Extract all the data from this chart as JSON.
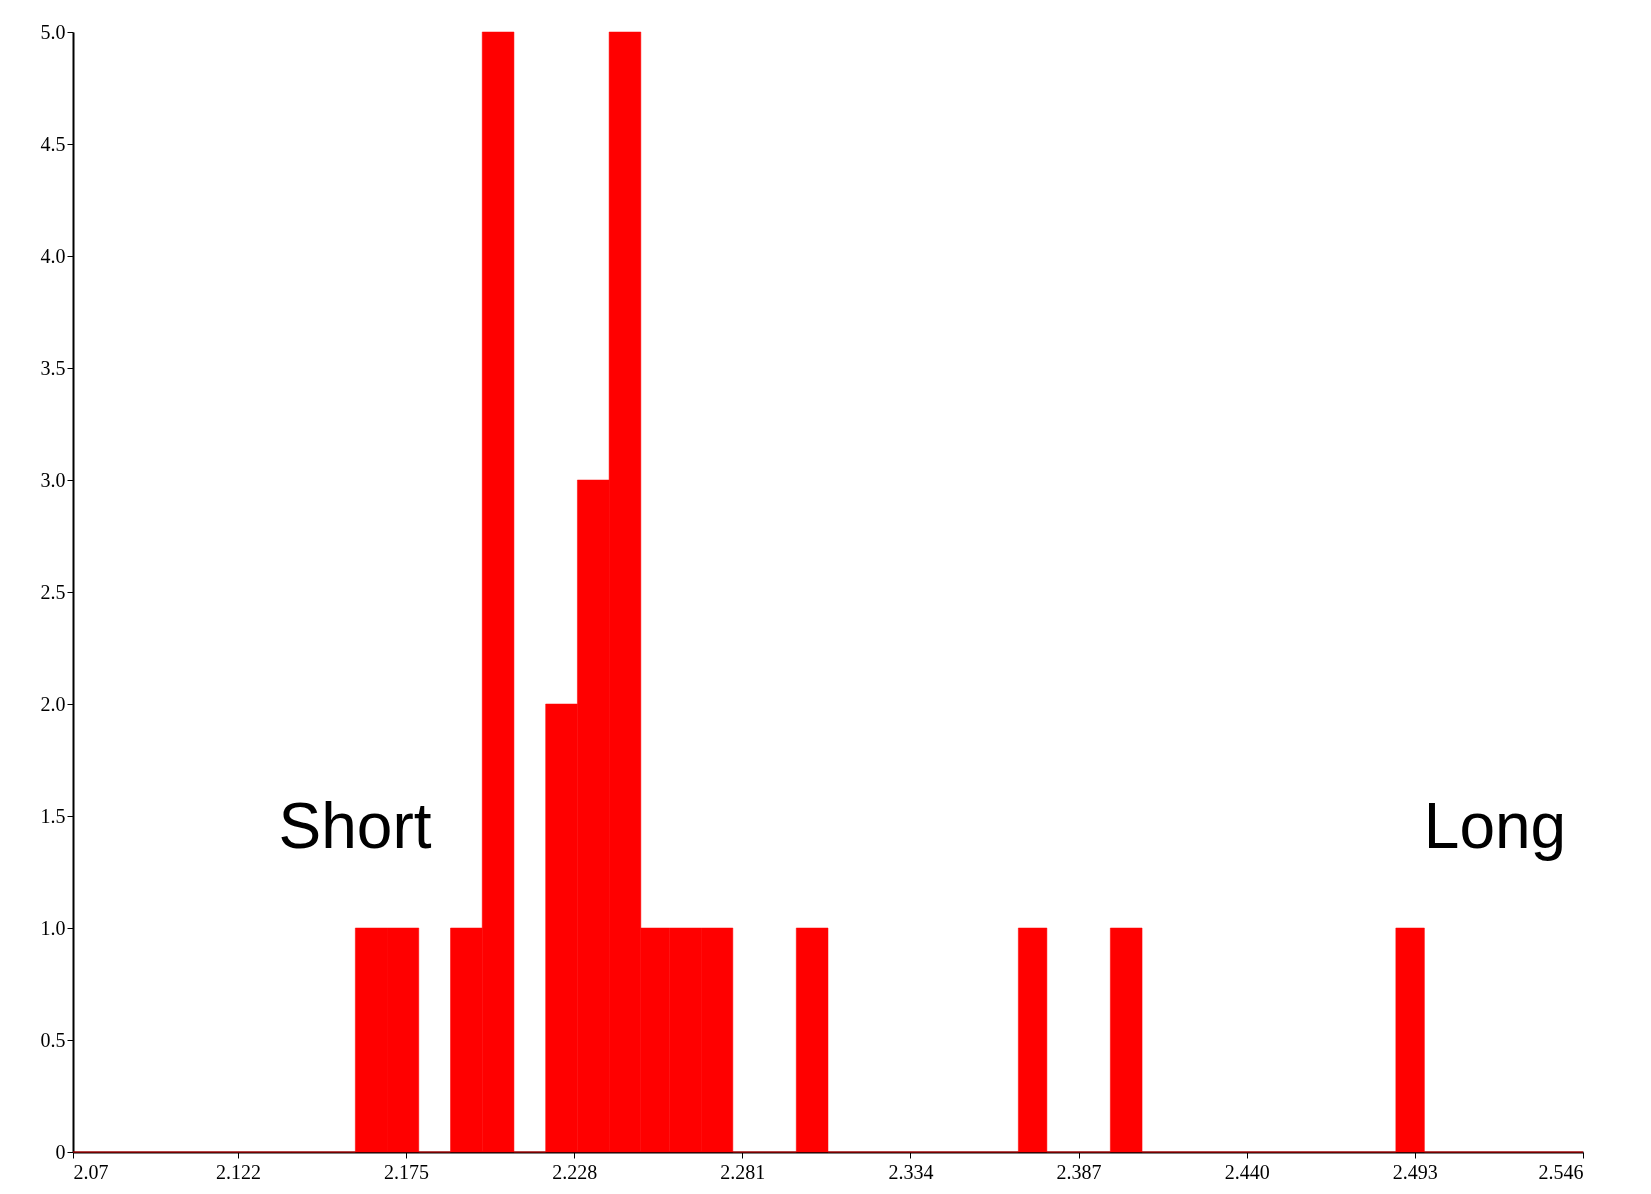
{
  "chart_data": {
    "type": "histogram",
    "bins": [
      2.07,
      2.08,
      2.09,
      2.1,
      2.11,
      2.12,
      2.13,
      2.139,
      2.149,
      2.159,
      2.169,
      2.179,
      2.189,
      2.199,
      2.209,
      2.219,
      2.229,
      2.239,
      2.249,
      2.258,
      2.268,
      2.278,
      2.288,
      2.298,
      2.308,
      2.318,
      2.328,
      2.338,
      2.348,
      2.358,
      2.368,
      2.377,
      2.387,
      2.397,
      2.407,
      2.417,
      2.427,
      2.437,
      2.447,
      2.457,
      2.467,
      2.477,
      2.487,
      2.496,
      2.506,
      2.516,
      2.526,
      2.536,
      2.546
    ],
    "values": [
      0,
      0,
      0,
      0,
      0,
      0,
      0,
      0,
      0,
      1,
      1,
      0,
      1,
      5,
      0,
      2,
      3,
      5,
      1,
      1,
      1,
      0,
      0,
      1,
      0,
      0,
      0,
      0,
      0,
      0,
      1,
      0,
      0,
      1,
      0,
      0,
      0,
      0,
      0,
      0,
      0,
      0,
      1,
      0,
      0,
      0,
      0,
      0
    ],
    "color": "#ff0000",
    "xlim": [
      2.07,
      2.546
    ],
    "xticks": [
      2.07,
      2.122,
      2.175,
      2.228,
      2.281,
      2.334,
      2.387,
      {
        "value": 2.44,
        "label": "2.440"
      },
      2.493,
      2.546
    ],
    "ylim": [
      0,
      5
    ],
    "yticks": [
      0,
      0.5,
      {
        "value": 1,
        "label": "1.0"
      },
      1.5,
      {
        "value": 2,
        "label": "2.0"
      },
      2.5,
      {
        "value": 3,
        "label": "3.0"
      },
      3.5,
      {
        "value": 4,
        "label": "4.0"
      },
      4.5,
      {
        "value": 5,
        "label": "5.0"
      }
    ],
    "annotations": [
      "Short",
      "Long"
    ]
  }
}
